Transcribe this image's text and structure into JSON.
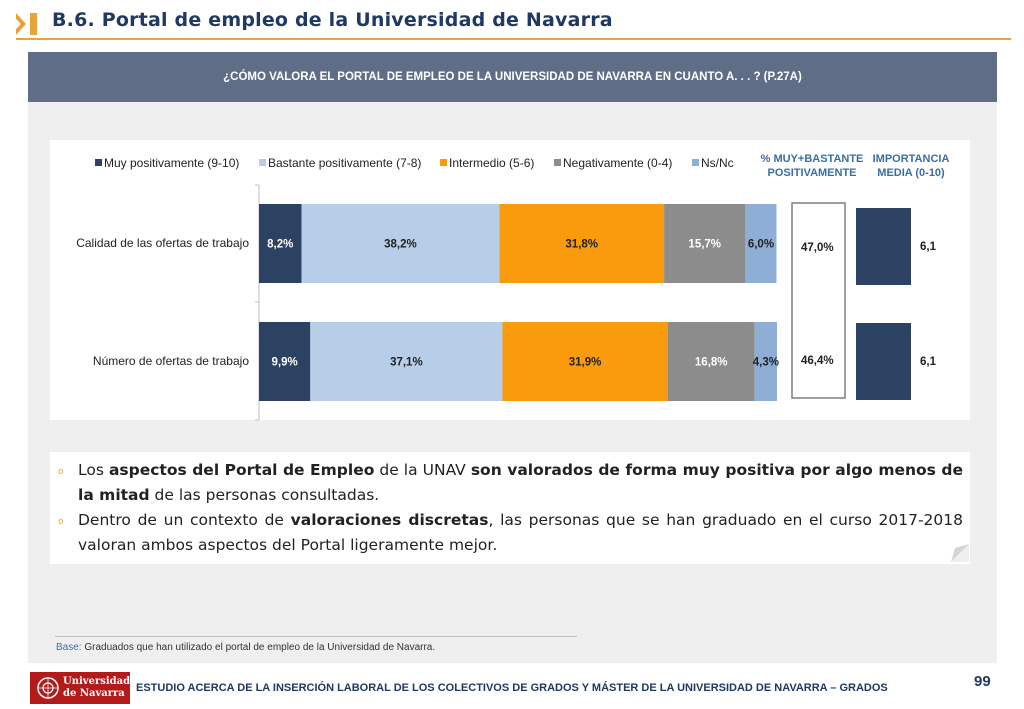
{
  "header": {
    "title": "B.6. Portal de empleo de la Universidad de Navarra"
  },
  "banner": {
    "question": "¿CÓMO VALORA EL PORTAL DE EMPLEO DE LA UNIVERSIDAD DE NAVARRA EN CUANTO A. . . ? (P.27A)"
  },
  "chart_data": {
    "type": "bar",
    "orientation": "horizontal-stacked",
    "categories": [
      "Calidad de las ofertas de trabajo",
      "Número de ofertas de trabajo"
    ],
    "series": [
      {
        "name": "Muy positivamente (9-10)",
        "color": "#2b4263",
        "values": [
          8.2,
          9.9
        ],
        "labels": [
          "8,2%",
          "9,9%"
        ]
      },
      {
        "name": "Bastante positivamente (7-8)",
        "color": "#b7cde8",
        "values": [
          38.2,
          37.1
        ],
        "labels": [
          "38,2%",
          "37,1%"
        ]
      },
      {
        "name": "Intermedio (5-6)",
        "color": "#f99b0c",
        "values": [
          31.8,
          31.9
        ],
        "labels": [
          "31,8%",
          "31,9%"
        ]
      },
      {
        "name": "Negativamente (0-4)",
        "color": "#8c8c8c",
        "values": [
          15.7,
          16.8
        ],
        "labels": [
          "15,7%",
          "16,8%"
        ]
      },
      {
        "name": "Ns/Nc",
        "color": "#8eaed6",
        "values": [
          6.0,
          4.3
        ],
        "labels": [
          "6,0%",
          "4,3%"
        ]
      }
    ],
    "xlim": [
      0,
      100
    ],
    "legend_position": "top",
    "columns": {
      "muy_bastante": {
        "header_line1": "% MUY+BASTANTE",
        "header_line2": "POSITIVAMENTE",
        "labels": [
          "47,0%",
          "46,4%"
        ]
      },
      "importancia": {
        "header_line1": "IMPORTANCIA",
        "header_line2": "MEDIA (0-10)",
        "values": [
          6.1,
          6.1
        ],
        "labels": [
          "6,1",
          "6,1"
        ],
        "color": "#2b4263"
      }
    }
  },
  "bullets": {
    "b1": {
      "t1": "Los ",
      "b1": "aspectos del Portal de Empleo",
      "t2": " de la UNAV ",
      "b2": "son valorados de forma muy positiva por algo menos de la mitad",
      "t3": " de las personas consultadas."
    },
    "b2": {
      "t1": "Dentro de un contexto de ",
      "b1": "valoraciones discretas",
      "t2": ", las personas que se han graduado en el curso 2017-2018 valoran ambos aspectos del Portal ligeramente mejor."
    },
    "marker": "o"
  },
  "base": {
    "label": "Base:",
    "text": " Graduados que han utilizado el portal de empleo de la Universidad de Navarra."
  },
  "footer": {
    "logo_line1": "Universidad",
    "logo_line2": "de Navarra",
    "text": "ESTUDIO ACERCA DE LA INSERCIÓN LABORAL DE LOS COLECTIVOS DE GRADOS Y MÁSTER DE LA UNIVERSIDAD DE NAVARRA – GRADOS",
    "page_number": "99"
  },
  "colors": {
    "title": "#1f3864",
    "accent": "#e8a33a",
    "banner": "#5f6d86",
    "header_columns": "#3a6ea5",
    "logo": "#b31b1b"
  }
}
